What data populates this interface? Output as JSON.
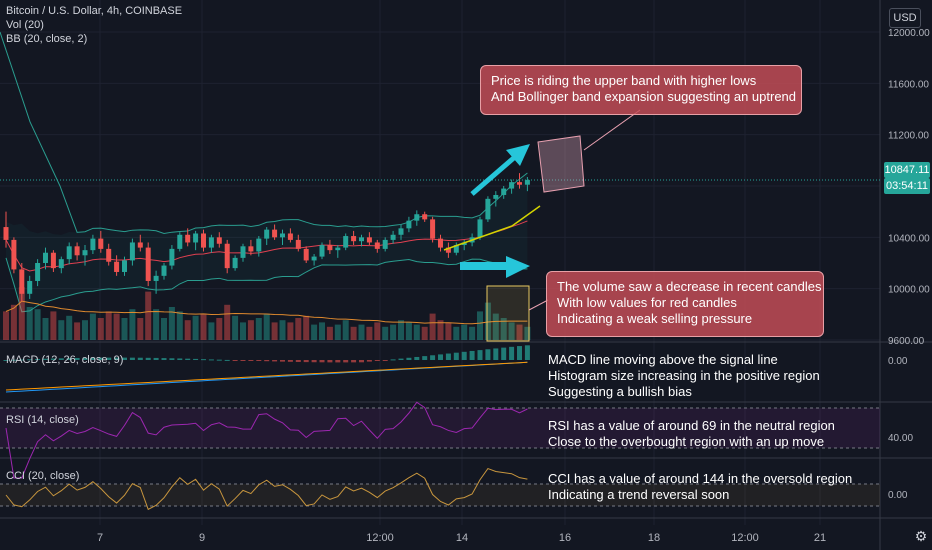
{
  "header": {
    "title": "Bitcoin / U.S. Dollar, 4h, COINBASE",
    "vol_label": "Vol (20)",
    "bb_label": "BB (20, close, 2)",
    "currency": "USD"
  },
  "price_axis": {
    "ticks": [
      "12000.00",
      "11600.00",
      "11200.00",
      "10400.00",
      "10000.00",
      "9600.00"
    ],
    "current_price": "10847.11",
    "countdown": "03:54:11"
  },
  "time_axis": {
    "ticks": [
      "7",
      "9",
      "12:00",
      "14",
      "16",
      "18",
      "12:00",
      "21"
    ]
  },
  "panes": {
    "macd": {
      "label": "MACD (12, 26, close, 9)",
      "tick": "0.00"
    },
    "rsi": {
      "label": "RSI (14, close)",
      "tick": "40.00"
    },
    "cci": {
      "label": "CCI (20, close)",
      "tick": "0.00"
    }
  },
  "annotations": {
    "bollinger": [
      "Price is riding the upper band with higher lows",
      "And Bollinger band expansion suggesting an uptrend"
    ],
    "volume": [
      "The volume saw a decrease in recent candles",
      "With low values for red candles",
      "Indicating a weak selling pressure"
    ],
    "macd": [
      "MACD line moving above the signal line",
      "Histogram size increasing in the positive region",
      "Suggesting a bullish bias"
    ],
    "rsi": [
      "RSI has a value of around 69 in the neutral region",
      "Close to the overbought region with an up move"
    ],
    "cci": [
      "CCI has a value of around 144 in the oversold region",
      "Indicating a trend reversal soon"
    ]
  },
  "colors": {
    "background": "#131722",
    "up": "#26a69a",
    "down": "#ef5350",
    "bb_band": "#2a9d8f",
    "bb_basis": "#e04050",
    "rsi": "#9c27b0",
    "cci": "#c8963e",
    "macd": "#2196f3",
    "signal": "#ff9800",
    "arrow": "#26c6da",
    "trendline": "#d4d400",
    "callout": "#c84e58"
  },
  "chart_data": {
    "type": "line",
    "subtype": "candlestick",
    "symbol": "Bitcoin / U.S. Dollar, 4h, COINBASE",
    "price_ylim": [
      9400,
      12080
    ],
    "y_ticks": [
      9600,
      10000,
      10400,
      11200,
      11600,
      12000
    ],
    "x_tick_labels": [
      "7",
      "9",
      "12:00",
      "14",
      "16",
      "18",
      "12:00",
      "21"
    ],
    "candles": [
      [
        10480,
        10600,
        10320,
        10380
      ],
      [
        10380,
        10400,
        10120,
        10150
      ],
      [
        10150,
        10200,
        9900,
        9960
      ],
      [
        9960,
        10100,
        9920,
        10060
      ],
      [
        10060,
        10230,
        10020,
        10200
      ],
      [
        10200,
        10320,
        10150,
        10280
      ],
      [
        10280,
        10300,
        10130,
        10160
      ],
      [
        10160,
        10250,
        10120,
        10230
      ],
      [
        10230,
        10360,
        10190,
        10330
      ],
      [
        10330,
        10360,
        10220,
        10260
      ],
      [
        10260,
        10340,
        10180,
        10300
      ],
      [
        10300,
        10420,
        10270,
        10390
      ],
      [
        10390,
        10450,
        10280,
        10310
      ],
      [
        10310,
        10350,
        10180,
        10210
      ],
      [
        10210,
        10260,
        10100,
        10130
      ],
      [
        10130,
        10250,
        10100,
        10220
      ],
      [
        10220,
        10390,
        10180,
        10360
      ],
      [
        10360,
        10420,
        10290,
        10320
      ],
      [
        10320,
        10360,
        10020,
        10060
      ],
      [
        10060,
        10140,
        9960,
        10100
      ],
      [
        10100,
        10200,
        10070,
        10180
      ],
      [
        10180,
        10340,
        10150,
        10310
      ],
      [
        10310,
        10440,
        10290,
        10420
      ],
      [
        10420,
        10470,
        10330,
        10360
      ],
      [
        10360,
        10450,
        10300,
        10430
      ],
      [
        10430,
        10460,
        10290,
        10320
      ],
      [
        10320,
        10420,
        10280,
        10400
      ],
      [
        10400,
        10440,
        10320,
        10350
      ],
      [
        10350,
        10380,
        10120,
        10160
      ],
      [
        10160,
        10260,
        10140,
        10240
      ],
      [
        10240,
        10350,
        10210,
        10330
      ],
      [
        10330,
        10380,
        10260,
        10290
      ],
      [
        10290,
        10410,
        10250,
        10390
      ],
      [
        10390,
        10480,
        10340,
        10460
      ],
      [
        10460,
        10500,
        10380,
        10400
      ],
      [
        10400,
        10460,
        10340,
        10430
      ],
      [
        10430,
        10470,
        10360,
        10380
      ],
      [
        10380,
        10420,
        10290,
        10310
      ],
      [
        10310,
        10330,
        10200,
        10220
      ],
      [
        10220,
        10270,
        10180,
        10250
      ],
      [
        10250,
        10360,
        10230,
        10340
      ],
      [
        10340,
        10380,
        10270,
        10300
      ],
      [
        10300,
        10340,
        10240,
        10320
      ],
      [
        10320,
        10430,
        10300,
        10410
      ],
      [
        10410,
        10450,
        10340,
        10370
      ],
      [
        10370,
        10420,
        10330,
        10400
      ],
      [
        10400,
        10440,
        10340,
        10360
      ],
      [
        10360,
        10380,
        10280,
        10310
      ],
      [
        10310,
        10400,
        10290,
        10380
      ],
      [
        10380,
        10450,
        10350,
        10420
      ],
      [
        10420,
        10500,
        10380,
        10470
      ],
      [
        10470,
        10560,
        10440,
        10530
      ],
      [
        10530,
        10610,
        10490,
        10580
      ],
      [
        10580,
        10600,
        10520,
        10540
      ],
      [
        10540,
        10560,
        10360,
        10390
      ],
      [
        10390,
        10420,
        10290,
        10320
      ],
      [
        10320,
        10360,
        10240,
        10280
      ],
      [
        10280,
        10360,
        10260,
        10340
      ],
      [
        10340,
        10380,
        10300,
        10360
      ],
      [
        10360,
        10430,
        10330,
        10400
      ],
      [
        10400,
        10560,
        10380,
        10540
      ],
      [
        10540,
        10720,
        10520,
        10700
      ],
      [
        10700,
        10760,
        10640,
        10730
      ],
      [
        10730,
        10800,
        10700,
        10780
      ],
      [
        10780,
        10850,
        10740,
        10830
      ],
      [
        10830,
        10900,
        10780,
        10810
      ],
      [
        10810,
        10870,
        10760,
        10847
      ]
    ],
    "volume": [
      1.3,
      1.6,
      2.4,
      1.5,
      1.4,
      1.0,
      1.3,
      0.9,
      1.1,
      0.8,
      0.9,
      1.2,
      1.0,
      1.3,
      1.2,
      1.0,
      1.4,
      1.0,
      2.2,
      1.4,
      1.0,
      1.5,
      1.3,
      0.9,
      1.1,
      1.2,
      0.8,
      1.0,
      1.6,
      1.1,
      0.8,
      0.9,
      1.0,
      1.2,
      0.8,
      0.9,
      0.8,
      1.0,
      1.1,
      0.7,
      0.8,
      0.6,
      0.7,
      0.9,
      0.6,
      0.7,
      0.6,
      0.8,
      0.6,
      0.7,
      0.9,
      0.8,
      0.7,
      0.6,
      1.2,
      0.9,
      0.8,
      0.6,
      0.7,
      0.6,
      1.3,
      1.7,
      1.2,
      1.0,
      0.8,
      0.7,
      0.6
    ],
    "rsi_value": 69,
    "cci_value": 144,
    "rsi_levels": [
      70,
      30
    ],
    "cci_levels": [
      100,
      -100
    ]
  }
}
